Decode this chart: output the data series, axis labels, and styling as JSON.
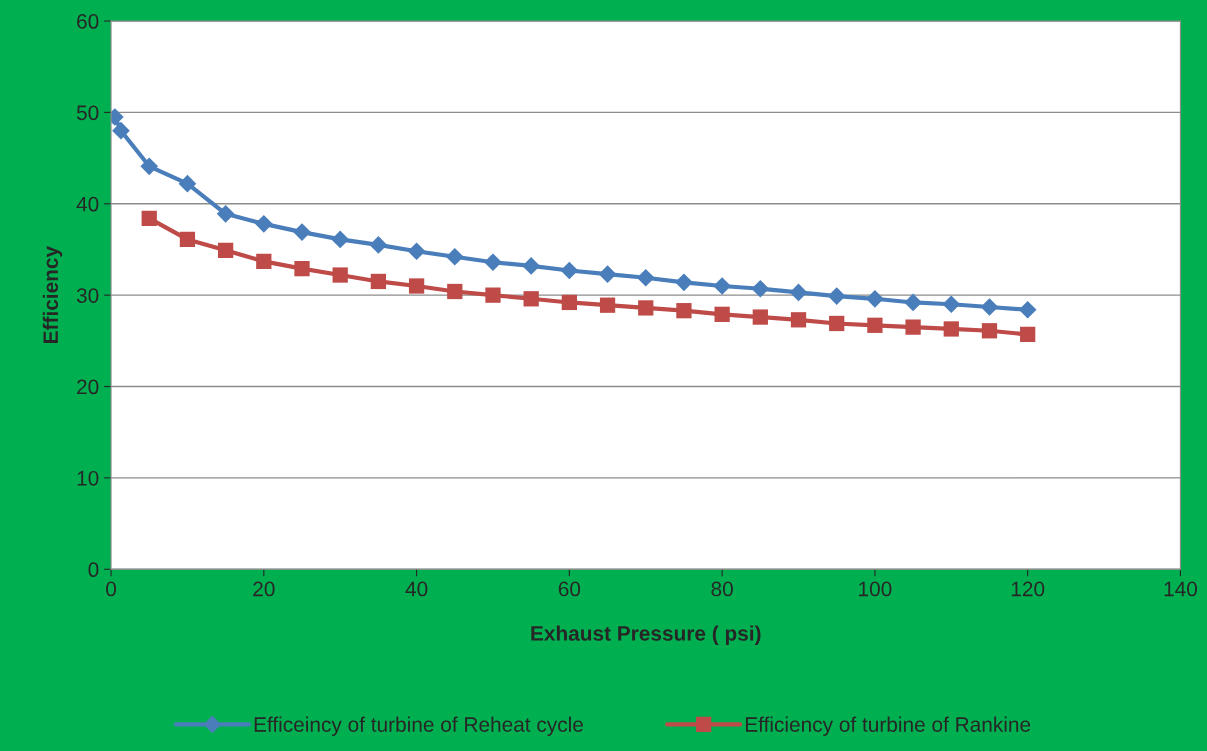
{
  "chart_data": {
    "type": "line",
    "xlabel": "Exhaust Pressure ( psi)",
    "ylabel": "Efficiency",
    "series": [
      {
        "name": "Efficeincy of turbine of Reheat cycle",
        "color": "#4a7ebb",
        "marker": "diamond",
        "x": [
          0.5,
          1.3,
          5,
          10,
          15,
          20,
          25,
          30,
          35,
          40,
          45,
          50,
          55,
          60,
          65,
          70,
          75,
          80,
          85,
          90,
          95,
          100,
          105,
          110,
          115,
          120
        ],
        "values": [
          49.5,
          48.0,
          44.1,
          42.2,
          38.9,
          37.8,
          36.9,
          36.1,
          35.5,
          34.8,
          34.2,
          33.6,
          33.2,
          32.7,
          32.3,
          31.9,
          31.4,
          31.0,
          30.7,
          30.3,
          29.9,
          29.6,
          29.2,
          29.0,
          28.7,
          28.4
        ]
      },
      {
        "name": "Efficiency of turbine of Rankine",
        "color": "#be4b48",
        "marker": "square",
        "x": [
          5,
          10,
          15,
          20,
          25,
          30,
          35,
          40,
          45,
          50,
          55,
          60,
          65,
          70,
          75,
          80,
          85,
          90,
          95,
          100,
          105,
          110,
          115,
          120
        ],
        "values": [
          38.4,
          36.1,
          34.9,
          33.7,
          32.9,
          32.2,
          31.5,
          31.0,
          30.4,
          30.0,
          29.6,
          29.2,
          28.9,
          28.6,
          28.3,
          27.9,
          27.6,
          27.3,
          26.9,
          26.7,
          26.5,
          26.3,
          26.1,
          25.7
        ]
      }
    ],
    "xlim": [
      0,
      140
    ],
    "xticks": [
      0,
      20,
      40,
      60,
      80,
      100,
      120,
      140
    ],
    "ylim": [
      0,
      60
    ],
    "yticks": [
      0,
      10,
      20,
      30,
      40,
      50,
      60
    ],
    "grid": "y",
    "legend": "bottom",
    "line_style": "solid"
  }
}
